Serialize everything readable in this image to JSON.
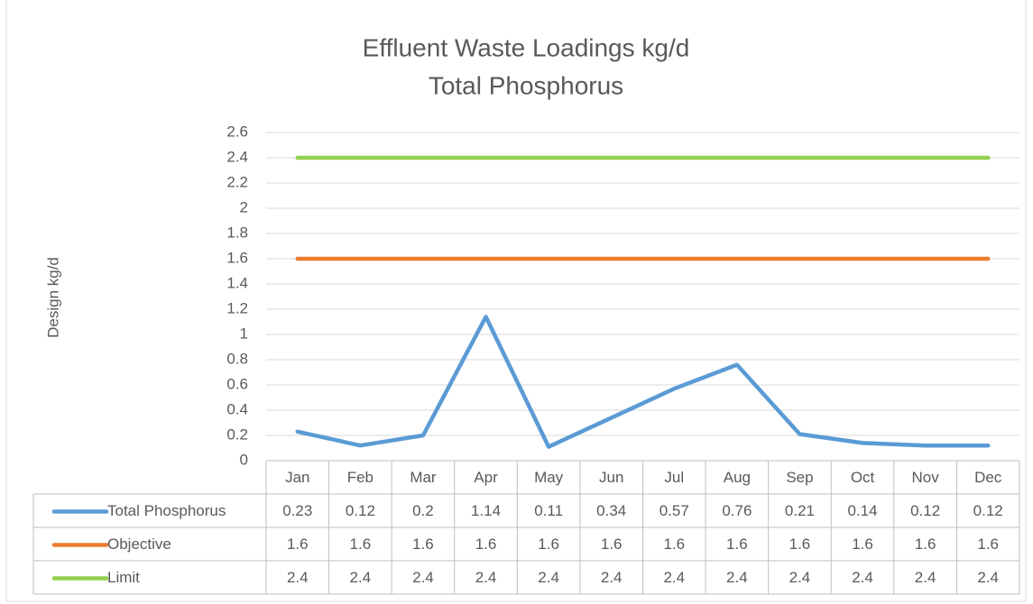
{
  "chart_data": {
    "type": "line",
    "title": "Effluent Waste Loadings kg/d",
    "subtitle": "Total Phosphorus",
    "y_label": "Design kg/d",
    "categories": [
      "Jan",
      "Feb",
      "Mar",
      "Apr",
      "May",
      "Jun",
      "Jul",
      "Aug",
      "Sep",
      "Oct",
      "Nov",
      "Dec"
    ],
    "series": [
      {
        "name": "Total Phosphorus",
        "color": "#5b9bd5",
        "values": [
          0.23,
          0.12,
          0.2,
          1.14,
          0.11,
          0.34,
          0.57,
          0.76,
          0.21,
          0.14,
          0.12,
          0.12
        ]
      },
      {
        "name": "Objective",
        "color": "#ed7d31",
        "values": [
          1.6,
          1.6,
          1.6,
          1.6,
          1.6,
          1.6,
          1.6,
          1.6,
          1.6,
          1.6,
          1.6,
          1.6
        ]
      },
      {
        "name": "Limit",
        "color": "#92d050",
        "values": [
          2.4,
          2.4,
          2.4,
          2.4,
          2.4,
          2.4,
          2.4,
          2.4,
          2.4,
          2.4,
          2.4,
          2.4
        ]
      }
    ],
    "ylim": [
      0,
      2.6
    ],
    "yticks": [
      0,
      0.2,
      0.4,
      0.6,
      0.8,
      1,
      1.2,
      1.4,
      1.6,
      1.8,
      2,
      2.2,
      2.4,
      2.6
    ],
    "grid": true
  }
}
